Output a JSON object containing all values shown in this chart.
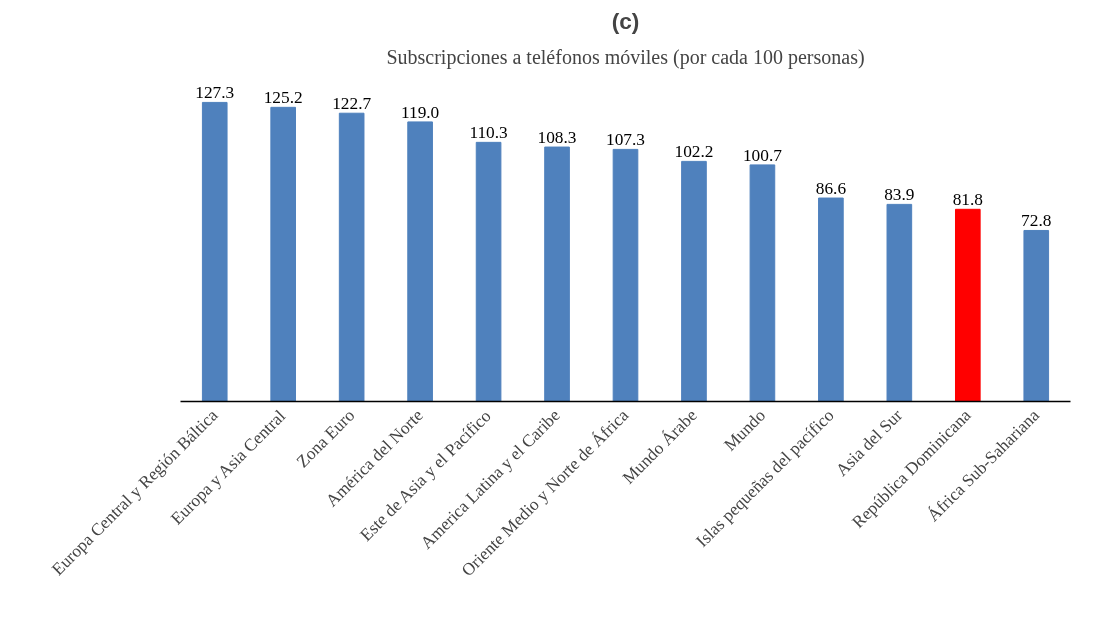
{
  "chart_data": {
    "type": "bar",
    "title": "(c)",
    "subtitle": "Subscripciones a teléfonos móviles (por cada 100 personas)",
    "categories": [
      "Europa Central y Región Báltica",
      "Europa y Asia Central",
      "Zona Euro",
      "América del Norte",
      "Este de Asia y el Pacífico",
      "America Latina y el Caribe",
      "Oriente Medio y Norte de África",
      "Mundo Árabe",
      "Mundo",
      "Islas pequeñas del pacífico",
      "Asia del Sur",
      "República Dominicana",
      "África Sub-Sahariana"
    ],
    "values": [
      127.3,
      125.2,
      122.7,
      119.0,
      110.3,
      108.3,
      107.3,
      102.2,
      100.7,
      86.6,
      83.9,
      81.8,
      72.8
    ],
    "colors": [
      "#4f81bd",
      "#4f81bd",
      "#4f81bd",
      "#4f81bd",
      "#4f81bd",
      "#4f81bd",
      "#4f81bd",
      "#4f81bd",
      "#4f81bd",
      "#4f81bd",
      "#4f81bd",
      "#ff0000",
      "#4f81bd"
    ],
    "value_labels": [
      "127.3",
      "125.2",
      "122.7",
      "119.0",
      "110.3",
      "108.3",
      "107.3",
      "102.2",
      "100.7",
      "86.6",
      "83.9",
      "81.8",
      "72.8"
    ],
    "grid": false
  }
}
